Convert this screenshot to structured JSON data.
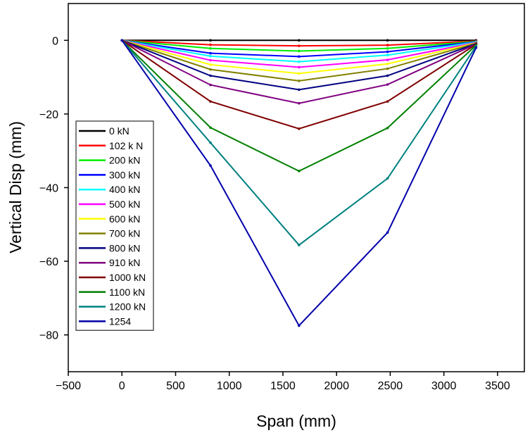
{
  "chart_data": {
    "type": "line",
    "title": "",
    "xlabel": "Span (mm)",
    "ylabel": "Vertical Disp (mm)",
    "xlim": [
      -500,
      3750
    ],
    "ylim": [
      -90,
      10
    ],
    "xticks": [
      -500,
      0,
      500,
      1000,
      1500,
      2000,
      2500,
      3000,
      3500
    ],
    "yticks": [
      0,
      -20,
      -40,
      -60,
      -80
    ],
    "grid": false,
    "legend_position": "left",
    "x": [
      0,
      825,
      1650,
      2475,
      3300
    ],
    "series": [
      {
        "name": "0 kN",
        "color": "#000000",
        "values": [
          0,
          0,
          0,
          0,
          0
        ]
      },
      {
        "name": "102 k N",
        "color": "#ff0000",
        "values": [
          0,
          -1.2,
          -1.5,
          -1.3,
          -0.2
        ]
      },
      {
        "name": "200 kN",
        "color": "#00ee00",
        "values": [
          0,
          -2.2,
          -2.9,
          -2.2,
          -0.3
        ]
      },
      {
        "name": "300 kN",
        "color": "#0000ff",
        "values": [
          0,
          -3.5,
          -4.4,
          -3.1,
          -0.4
        ]
      },
      {
        "name": "400 kN",
        "color": "#00ffff",
        "values": [
          0,
          -4.3,
          -5.8,
          -4.0,
          -0.5
        ]
      },
      {
        "name": "500 kN",
        "color": "#ff00ff",
        "values": [
          0,
          -5.4,
          -7.3,
          -5.3,
          -0.6
        ]
      },
      {
        "name": "600 kN",
        "color": "#ffff00",
        "values": [
          0,
          -6.6,
          -9.0,
          -6.4,
          -0.7
        ]
      },
      {
        "name": "700 kN",
        "color": "#808000",
        "values": [
          0,
          -7.9,
          -11.0,
          -7.7,
          -0.8
        ]
      },
      {
        "name": "800 kN",
        "color": "#000080",
        "values": [
          0,
          -9.6,
          -13.4,
          -9.6,
          -0.9
        ]
      },
      {
        "name": "910 kN",
        "color": "#800080",
        "values": [
          0,
          -12.1,
          -17.1,
          -12.0,
          -1.0
        ]
      },
      {
        "name": "1000 kN",
        "color": "#800000",
        "values": [
          0,
          -16.6,
          -24.0,
          -16.6,
          -1.1
        ]
      },
      {
        "name": "1100 kN",
        "color": "#008000",
        "values": [
          0,
          -23.7,
          -35.5,
          -23.8,
          -1.3
        ]
      },
      {
        "name": "1200 kN",
        "color": "#008080",
        "values": [
          0,
          -27.8,
          -55.6,
          -37.5,
          -1.6
        ]
      },
      {
        "name": "1254",
        "color": "#0000aa",
        "values": [
          0,
          -34.0,
          -77.5,
          -52.2,
          -2.0
        ]
      }
    ]
  }
}
